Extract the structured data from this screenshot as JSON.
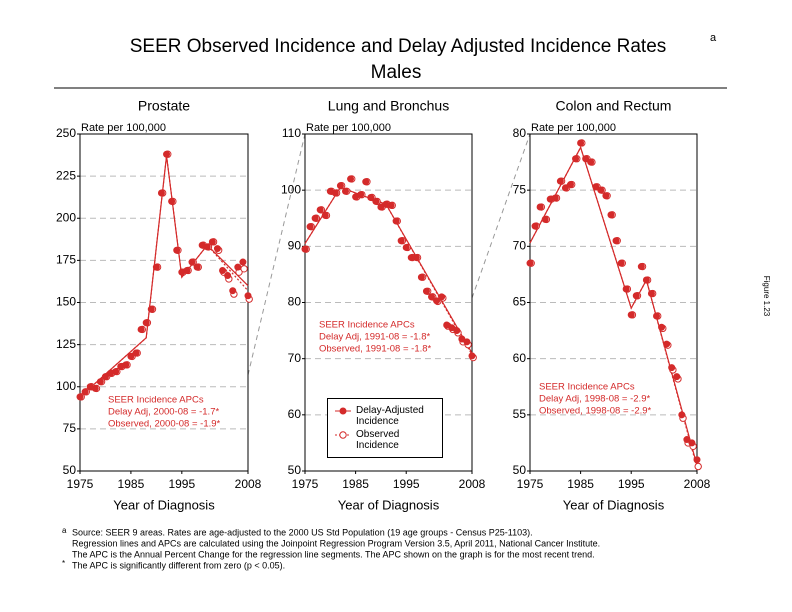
{
  "title": "SEER Observed Incidence and Delay Adjusted Incidence Rates",
  "title_note": "a",
  "subtitle": "Males",
  "figure_label": "Figure 1.23",
  "footnotes": [
    {
      "symbol": "a",
      "lines": [
        "Source: SEER 9 areas. Rates are age-adjusted to the 2000 US Std Population (19 age groups - Census P25-1103).",
        "Regression lines and APCs are calculated using the Joinpoint Regression Program Version 3.5, April 2011, National Cancer Institute.",
        "The APC is the Annual Percent Change for the regression line segments. The APC shown on the graph is for the most recent trend."
      ]
    },
    {
      "symbol": "*",
      "lines": [
        "The APC is significantly different from zero (p < 0.05)."
      ]
    }
  ],
  "chart_data": [
    {
      "type": "scatter",
      "title": "Prostate",
      "y_label": "Rate per 100,000",
      "x_label": "Year of Diagnosis",
      "xlim": [
        1975,
        2008
      ],
      "xticks": [
        1975,
        1985,
        1995,
        2008
      ],
      "ylim": [
        50,
        250
      ],
      "yticks": [
        50,
        75,
        100,
        125,
        150,
        175,
        200,
        225,
        250
      ],
      "grid": true,
      "annotation": [
        "SEER Incidence APCs",
        "Delay Adj, 2000-08 = -1.7*",
        "Observed, 2000-08 = -1.9*"
      ],
      "x": [
        1975,
        1976,
        1977,
        1978,
        1979,
        1980,
        1981,
        1982,
        1983,
        1984,
        1985,
        1986,
        1987,
        1988,
        1989,
        1990,
        1991,
        1992,
        1993,
        1994,
        1995,
        1996,
        1997,
        1998,
        1999,
        2000,
        2001,
        2002,
        2003,
        2004,
        2005,
        2006,
        2007,
        2008
      ],
      "series": [
        {
          "color": "#d42a2a",
          "marker": "filled",
          "values": [
            94,
            97,
            100,
            99,
            103,
            106,
            108,
            109,
            112,
            113,
            118,
            120,
            134,
            138,
            146,
            171,
            215,
            238,
            210,
            181,
            168,
            169,
            174,
            171,
            184,
            183,
            186,
            182,
            169,
            166,
            157,
            171,
            174,
            154
          ],
          "trend_x": [
            1975,
            1988,
            1992,
            1995,
            2000,
            2008
          ],
          "trend_values": [
            94,
            129,
            237,
            165,
            184,
            160
          ]
        },
        {
          "color": "#d42a2a",
          "marker": "open",
          "values": [
            94,
            97,
            100,
            99,
            103,
            106,
            108,
            109,
            112,
            113,
            118,
            120,
            134,
            138,
            146,
            171,
            215,
            238,
            210,
            181,
            168,
            169,
            174,
            171,
            184,
            183,
            186,
            181,
            168,
            164,
            155,
            168,
            170,
            152
          ],
          "trend_x": [
            1975,
            1988,
            1992,
            1995,
            2000,
            2008
          ],
          "trend_values": [
            94,
            129,
            237,
            165,
            184,
            157
          ]
        }
      ]
    },
    {
      "type": "scatter",
      "title": "Lung and Bronchus",
      "y_label": "Rate per 100,000",
      "x_label": "Year of Diagnosis",
      "xlim": [
        1975,
        2008
      ],
      "xticks": [
        1975,
        1985,
        1995,
        2008
      ],
      "ylim": [
        50,
        110
      ],
      "yticks": [
        50,
        60,
        70,
        80,
        90,
        100,
        110
      ],
      "grid": true,
      "annotation": [
        "SEER Incidence APCs",
        "Delay Adj, 1991-08 = -1.8*",
        "Observed, 1991-08 = -1.8*"
      ],
      "legend": "lower-left",
      "x": [
        1975,
        1976,
        1977,
        1978,
        1979,
        1980,
        1981,
        1982,
        1983,
        1984,
        1985,
        1986,
        1987,
        1988,
        1989,
        1990,
        1991,
        1992,
        1993,
        1994,
        1995,
        1996,
        1997,
        1998,
        1999,
        2000,
        2001,
        2002,
        2003,
        2004,
        2005,
        2006,
        2007,
        2008
      ],
      "series": [
        {
          "name": "Delay-Adjusted Incidence",
          "color": "#d42a2a",
          "marker": "filled",
          "values": [
            89.5,
            93.5,
            95,
            96.5,
            95.5,
            99.8,
            99.5,
            100.8,
            99.8,
            102,
            98.8,
            99.2,
            101.5,
            98.7,
            98,
            97,
            97.5,
            97.3,
            94.5,
            91,
            89.8,
            88,
            88,
            84.5,
            82,
            81,
            80.3,
            81,
            76,
            75.5,
            75,
            73.5,
            73,
            70.5
          ],
          "trend_x": [
            1975,
            1982,
            1991,
            2008
          ],
          "trend_values": [
            90.5,
            100.5,
            97.5,
            71
          ]
        },
        {
          "name": "Observed Incidence",
          "color": "#d42a2a",
          "marker": "open",
          "values": [
            89.5,
            93.5,
            95,
            96.5,
            95.5,
            99.8,
            99.5,
            100.8,
            99.8,
            102,
            98.8,
            99.2,
            101.5,
            98.7,
            98,
            97,
            97.5,
            97.3,
            94.5,
            91,
            89.8,
            88,
            88,
            84.5,
            82,
            81,
            80.2,
            80.8,
            75.8,
            75.2,
            74.6,
            73,
            72.5,
            70.2
          ],
          "trend_x": [
            1975,
            1982,
            1991,
            2008
          ],
          "trend_values": [
            90.5,
            100.5,
            97.5,
            70.7
          ]
        }
      ]
    },
    {
      "type": "scatter",
      "title": "Colon and Rectum",
      "y_label": "Rate per 100,000",
      "x_label": "Year of Diagnosis",
      "xlim": [
        1975,
        2008
      ],
      "xticks": [
        1975,
        1985,
        1995,
        2008
      ],
      "ylim": [
        50,
        80
      ],
      "yticks": [
        50,
        55,
        60,
        65,
        70,
        75,
        80
      ],
      "grid": true,
      "annotation": [
        "SEER Incidence APCs",
        "Delay Adj, 1998-08 = -2.9*",
        "Observed, 1998-08 = -2.9*"
      ],
      "x": [
        1975,
        1976,
        1977,
        1978,
        1979,
        1980,
        1981,
        1982,
        1983,
        1984,
        1985,
        1986,
        1987,
        1988,
        1989,
        1990,
        1991,
        1992,
        1993,
        1994,
        1995,
        1996,
        1997,
        1998,
        1999,
        2000,
        2001,
        2002,
        2003,
        2004,
        2005,
        2006,
        2007,
        2008
      ],
      "series": [
        {
          "color": "#d42a2a",
          "marker": "filled",
          "values": [
            68.5,
            71.8,
            73.5,
            72.4,
            74.2,
            74.3,
            75.8,
            75.2,
            75.5,
            77.8,
            79.2,
            77.8,
            77.5,
            75.3,
            75,
            74.5,
            72.8,
            70.5,
            68.5,
            66.2,
            63.9,
            65.6,
            68.2,
            67,
            65.8,
            63.8,
            62.8,
            61.3,
            59.2,
            58.4,
            55,
            52.8,
            52.5,
            51
          ],
          "trend_x": [
            1975,
            1985,
            1995,
            1998,
            2008
          ],
          "trend_values": [
            70.3,
            78.8,
            64.5,
            67,
            50.5
          ]
        },
        {
          "color": "#d42a2a",
          "marker": "open",
          "values": [
            68.5,
            71.8,
            73.5,
            72.4,
            74.2,
            74.3,
            75.8,
            75.2,
            75.5,
            77.8,
            79.2,
            77.8,
            77.5,
            75.3,
            75,
            74.5,
            72.8,
            70.5,
            68.5,
            66.2,
            63.9,
            65.6,
            68.2,
            67,
            65.8,
            63.8,
            62.7,
            61.2,
            59,
            58.2,
            54.7,
            52.5,
            52.2,
            50.4
          ],
          "trend_x": [
            1975,
            1985,
            1995,
            1998,
            2008
          ],
          "trend_values": [
            70.3,
            78.8,
            64.5,
            67,
            50.3
          ]
        }
      ]
    }
  ]
}
